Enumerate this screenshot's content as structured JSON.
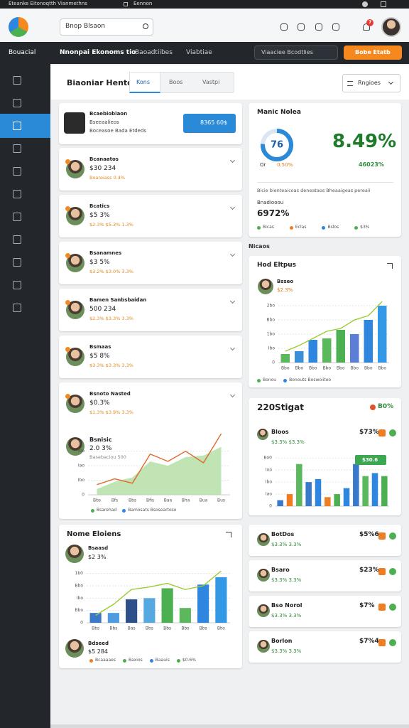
{
  "topbar": {
    "title": "Eteanke Eitonoqtth Vianmethns",
    "tab": "Eennon"
  },
  "header": {
    "search": "Bnop Blsaon",
    "notifications": "7"
  },
  "nav": {
    "brand": "Bouacial",
    "items": [
      "Nnonpai Ekonoms tio",
      "Baoadtiibes",
      "Viabtiae"
    ],
    "filter": "Viaaciee Bcodtlies",
    "button": "Bobe Etatb"
  },
  "page": {
    "title": "Biaoniar Hentdi",
    "tabs": [
      "Kons",
      "Boos",
      "Vastpi"
    ],
    "dropdown": "Rngioes"
  },
  "feature": {
    "name": "Bcaebiobiaon",
    "sub": "Bseeaalieos",
    "meta": "Boceasoe Bada Etdeds",
    "button": "8365 60$"
  },
  "list": [
    {
      "name": "Bcanaatos",
      "value": "$30 234",
      "meta": "Boareiass 0.4%"
    },
    {
      "name": "Bcatics",
      "value": "$5 3%",
      "meta": "$2.3% $5.3% 1.3%"
    },
    {
      "name": "Bsanamnes",
      "value": "$3 5%",
      "meta": "$3.2% $3.0% 3.3%"
    },
    {
      "name": "Bamen Sanbsbaidan",
      "value": "500 234",
      "meta": "$2.3% $3.3% 3.3%"
    },
    {
      "name": "Bsmaas",
      "value": "$5 8%",
      "meta": "$3.3% $3.3% 3.3%"
    },
    {
      "name": "Bsnoto Nasted",
      "value": "$0.3%",
      "meta": "$1.3% $3.9% 3.3%"
    }
  ],
  "growth": {
    "name": "Bsnisic",
    "value": "2.0 3%",
    "meta": "Basebaciou 500",
    "chart": {
      "type": "area",
      "categories": [
        "Bbs",
        "Bfs",
        "Bbs",
        "Bfis",
        "Baa",
        "Bha",
        "Bua",
        "Bus"
      ],
      "values": [
        40,
        90,
        120,
        230,
        200,
        260,
        270,
        330
      ],
      "line": [
        70,
        110,
        80,
        280,
        230,
        300,
        220,
        420
      ],
      "color": "#b5dfa6",
      "line_color": "#e06a2c",
      "ylim": [
        0,
        450
      ],
      "yticks": [
        0,
        {
          "value": 100,
          "label": "Ibo"
        },
        {
          "value": 200,
          "label": "Iao"
        },
        {
          "value": 300,
          "label": "Ibo"
        }
      ]
    },
    "legend": [
      {
        "label": "Bsarehad",
        "color": "#4caf50"
      },
      {
        "label": "Bamosats Bsoseartoso",
        "color": "#2e86de"
      }
    ]
  },
  "sales": {
    "title": "Nome Eloiens",
    "name": "Bsaasd",
    "value": "$2 3%",
    "chart": {
      "type": "bar",
      "categories": [
        "Bbs",
        "Bbs",
        "Bas",
        "Bbs",
        "Bbs",
        "Bbs",
        "Bbs",
        "Bbs"
      ],
      "values": [
        80,
        80,
        190,
        200,
        280,
        120,
        310,
        370
      ],
      "colors": [
        "#3a78c9",
        "#4f9be0",
        "#2d4f8a",
        "#56a8e0",
        "#4caf50",
        "#5cb85c",
        "#2e86de",
        "#3399e6"
      ],
      "line": [
        60,
        150,
        270,
        290,
        320,
        270,
        300,
        420
      ],
      "line_color": "#9acd32",
      "ylim": [
        0,
        450
      ],
      "yticks": [
        0,
        {
          "value": 100,
          "label": "Bbo"
        },
        {
          "value": 200,
          "label": "Ibo"
        },
        {
          "value": 300,
          "label": "Bbo"
        },
        {
          "value": 400,
          "label": "1b0"
        }
      ]
    },
    "footer": {
      "name": "Bdseed",
      "value": "$5 284"
    },
    "legend": [
      {
        "label": "Bcaaaaes",
        "color": "#ef7d22"
      },
      {
        "label": "Baxios",
        "color": "#4caf50"
      },
      {
        "label": "Baauis",
        "color": "#2e86de"
      },
      {
        "label": "$0.6%",
        "color": "#4caf50"
      }
    ]
  },
  "stats": {
    "title": "Manic Nolea",
    "donut": 76,
    "donut_note": "Or",
    "donut_change": "0.50%",
    "headline": "8.49%",
    "headline_sub": "46023%",
    "desc": "Bicie bienteaicoas deneataos Bheaaigeas pereaii",
    "caption": "Bnadiooou",
    "total": "6972%",
    "legend": [
      {
        "label": "Bicas",
        "color": "#4caf50"
      },
      {
        "label": "Eclas",
        "color": "#ef7d22"
      },
      {
        "label": "Bslos",
        "color": "#2e86de"
      },
      {
        "label": "$3%",
        "color": "#4caf50"
      }
    ]
  },
  "section_label": "Nicaos",
  "trend": {
    "title": "Hod Eltpus",
    "name": "Bsseo",
    "value": "$2.3%",
    "chart": {
      "type": "bar",
      "categories": [
        "Bbo",
        "Bbo",
        "Bbo",
        "Bbo",
        "Bbo",
        "Bbo",
        "Bbo",
        "Bbo"
      ],
      "values": [
        60,
        80,
        160,
        170,
        230,
        200,
        300,
        400
      ],
      "colors": [
        "#5cb85c",
        "#3a8fd8",
        "#2e86de",
        "#5cb85c",
        "#4caf50",
        "#5b7fd6",
        "#2e86de",
        "#3399e6"
      ],
      "line": [
        80,
        120,
        170,
        220,
        240,
        300,
        330,
        430
      ],
      "line_color": "#9acd32",
      "ylim": [
        0,
        450
      ],
      "yticks": [
        0,
        {
          "value": 100,
          "label": "Ibo"
        },
        {
          "value": 200,
          "label": "1bo"
        },
        {
          "value": 300,
          "label": "Bbo"
        },
        {
          "value": 400,
          "label": "2bo"
        }
      ]
    },
    "legend": [
      {
        "label": "Bonou",
        "color": "#4caf50"
      },
      {
        "label": "Bonouts Boswoiiteo",
        "color": "#2e86de"
      }
    ]
  },
  "split": {
    "title": "220Stigat",
    "change": "B0%",
    "name": "Bloos",
    "meta": "$3.3% $3.3%",
    "value": "$73%",
    "badge": "$30.6",
    "chart": {
      "type": "bar",
      "values": [
        20,
        40,
        140,
        80,
        90,
        30,
        40,
        60,
        140,
        100,
        110,
        100
      ],
      "colors": [
        "#3a78c9",
        "#ef7d22",
        "#5cb85c",
        "#3a78c9",
        "#2e86de",
        "#ef7d22",
        "#4caf50",
        "#2e86de",
        "#3a78c9",
        "#5cb85c",
        "#2e86de",
        "#4caf50"
      ],
      "ylim": [
        0,
        170
      ],
      "yticks": [
        0,
        {
          "value": 40,
          "label": "Iao"
        },
        {
          "value": 80,
          "label": "Ibo"
        },
        {
          "value": 120,
          "label": "Ioo"
        },
        {
          "value": 160,
          "label": "Bo0"
        }
      ]
    }
  },
  "right_list": [
    {
      "name": "BotDos",
      "meta": "$3.3% 3.3%",
      "value": "$5%6"
    },
    {
      "name": "Bsaro",
      "meta": "$3.3% 3.3%",
      "value": "$23%"
    },
    {
      "name": "Bso Norol",
      "meta": "$3.3% 3.3%",
      "value": "$7%"
    },
    {
      "name": "Borlon",
      "meta": "$3.3% 3.3%",
      "value": "$7%4"
    }
  ]
}
